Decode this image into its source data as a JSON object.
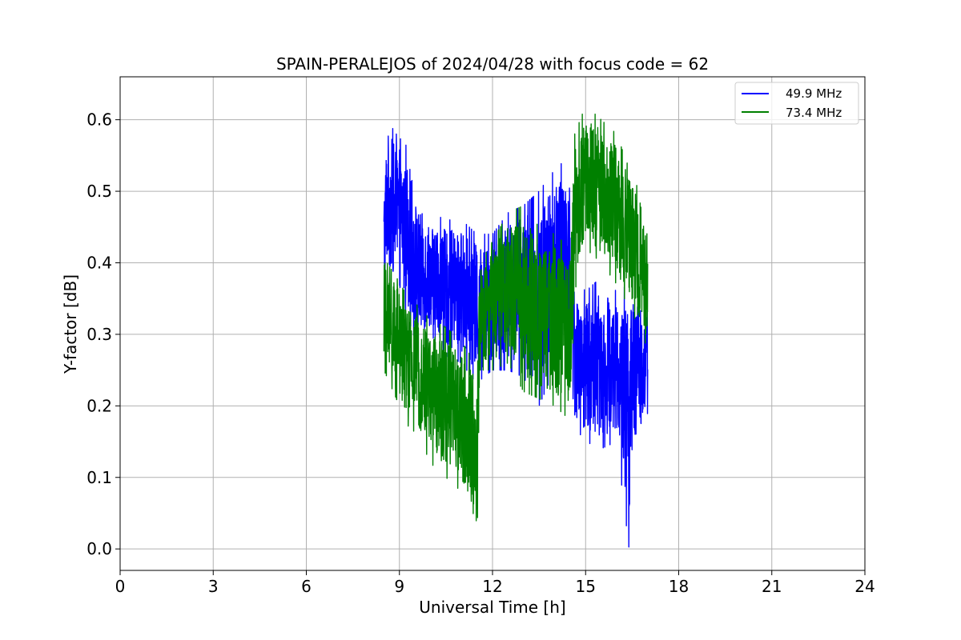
{
  "chart_data": {
    "type": "line",
    "title": "SPAIN-PERALEJOS of 2024/04/28 with focus code = 62",
    "xlabel": "Universal Time [h]",
    "ylabel": "Y-factor [dB]",
    "xlim": [
      0,
      24
    ],
    "ylim": [
      -0.03,
      0.66
    ],
    "xticks": [
      0,
      3,
      6,
      9,
      12,
      15,
      18,
      21,
      24
    ],
    "xtick_labels": [
      "0",
      "3",
      "6",
      "9",
      "12",
      "15",
      "18",
      "21",
      "24"
    ],
    "yticks": [
      0.0,
      0.1,
      0.2,
      0.3,
      0.4,
      0.5,
      0.6
    ],
    "ytick_labels": [
      "0.0",
      "0.1",
      "0.2",
      "0.3",
      "0.4",
      "0.5",
      "0.6"
    ],
    "grid": true,
    "legend_position": "top-right",
    "series": [
      {
        "name": "49.9 MHz",
        "color": "#0000ff",
        "x_range": [
          8.5,
          17.0
        ],
        "envelope": {
          "x": [
            8.5,
            8.6,
            8.9,
            9.3,
            9.6,
            10.0,
            10.5,
            11.0,
            11.5,
            11.7,
            12.0,
            12.5,
            13.0,
            13.5,
            14.0,
            14.5,
            14.65,
            15.0,
            15.5,
            16.0,
            16.4,
            16.5,
            17.0
          ],
          "min": [
            0.28,
            0.38,
            0.36,
            0.32,
            0.28,
            0.3,
            0.27,
            0.26,
            0.23,
            0.24,
            0.25,
            0.25,
            0.24,
            0.2,
            0.25,
            0.28,
            0.17,
            0.15,
            0.14,
            0.15,
            0.0,
            0.12,
            0.19
          ],
          "max": [
            0.54,
            0.6,
            0.58,
            0.56,
            0.49,
            0.47,
            0.46,
            0.46,
            0.44,
            0.44,
            0.44,
            0.47,
            0.48,
            0.5,
            0.53,
            0.55,
            0.38,
            0.36,
            0.38,
            0.36,
            0.37,
            0.36,
            0.35
          ]
        }
      },
      {
        "name": "73.4 MHz",
        "color": "#008000",
        "x_range": [
          8.5,
          17.0
        ],
        "envelope": {
          "x": [
            8.5,
            8.6,
            8.9,
            9.3,
            9.6,
            10.0,
            10.5,
            11.0,
            11.3,
            11.5,
            11.6,
            12.0,
            12.5,
            13.0,
            13.5,
            14.0,
            14.5,
            14.65,
            15.0,
            15.5,
            16.0,
            16.5,
            17.0
          ],
          "min": [
            0.25,
            0.24,
            0.21,
            0.17,
            0.16,
            0.12,
            0.1,
            0.08,
            0.03,
            0.0,
            0.25,
            0.25,
            0.26,
            0.22,
            0.21,
            0.2,
            0.18,
            0.36,
            0.42,
            0.4,
            0.37,
            0.33,
            0.28
          ],
          "max": [
            0.42,
            0.4,
            0.38,
            0.35,
            0.34,
            0.32,
            0.31,
            0.29,
            0.27,
            0.26,
            0.4,
            0.43,
            0.47,
            0.48,
            0.45,
            0.44,
            0.42,
            0.58,
            0.62,
            0.6,
            0.58,
            0.52,
            0.48
          ]
        }
      }
    ]
  }
}
